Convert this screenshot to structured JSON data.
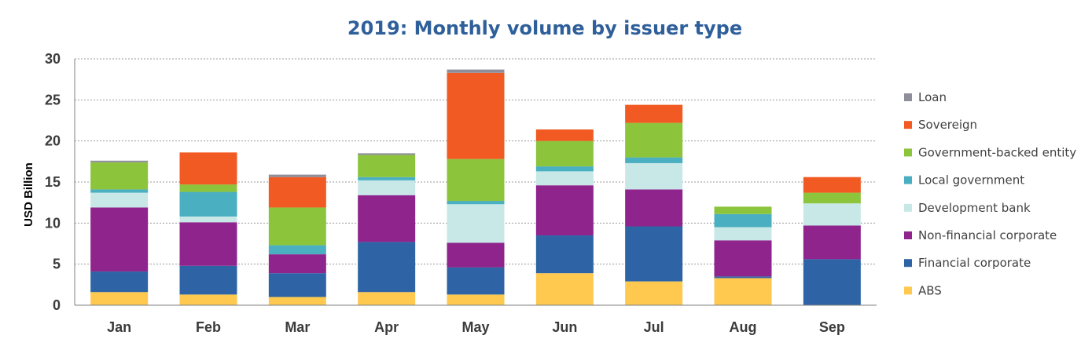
{
  "chart_data": {
    "type": "bar",
    "stacked": true,
    "title": "2019: Monthly volume by issuer type",
    "xlabel": "",
    "ylabel": "USD Billion",
    "ylim": [
      0,
      30
    ],
    "yticks": [
      "0",
      "5",
      "10",
      "15",
      "20",
      "25",
      "30"
    ],
    "grid": true,
    "legend_position": "right",
    "categories": [
      "Jan",
      "Feb",
      "Mar",
      "Apr",
      "May",
      "Jun",
      "Jul",
      "Aug",
      "Sep"
    ],
    "series": [
      {
        "name": "ABS",
        "color": "#ffc94f",
        "values": [
          1.6,
          1.3,
          1.0,
          1.6,
          1.3,
          3.9,
          2.9,
          3.3,
          0.0
        ]
      },
      {
        "name": "Financial corporate",
        "color": "#2e64a6",
        "values": [
          2.5,
          3.5,
          2.9,
          6.1,
          3.3,
          4.6,
          6.7,
          0.2,
          5.6
        ]
      },
      {
        "name": "Non-financial corporate",
        "color": "#8e248c",
        "values": [
          7.8,
          5.3,
          2.3,
          5.7,
          3.0,
          6.1,
          4.5,
          4.4,
          4.1
        ]
      },
      {
        "name": "Development bank",
        "color": "#c8e8e8",
        "values": [
          1.8,
          0.7,
          0.0,
          1.8,
          4.7,
          1.7,
          3.2,
          1.6,
          2.7
        ]
      },
      {
        "name": "Local government",
        "color": "#4aafc0",
        "values": [
          0.4,
          3.0,
          1.1,
          0.4,
          0.4,
          0.6,
          0.7,
          1.6,
          0.0
        ]
      },
      {
        "name": "Government-backed entity",
        "color": "#8cc43c",
        "values": [
          3.3,
          0.9,
          4.6,
          2.7,
          5.1,
          3.1,
          4.2,
          0.9,
          1.3
        ]
      },
      {
        "name": "Sovereign",
        "color": "#f15a22",
        "values": [
          0.0,
          3.9,
          3.7,
          0.0,
          10.5,
          1.4,
          2.2,
          0.0,
          1.9
        ]
      },
      {
        "name": "Loan",
        "color": "#8f8f9c",
        "values": [
          0.2,
          0.0,
          0.3,
          0.2,
          0.4,
          0.0,
          0.0,
          0.0,
          0.0
        ]
      }
    ]
  }
}
